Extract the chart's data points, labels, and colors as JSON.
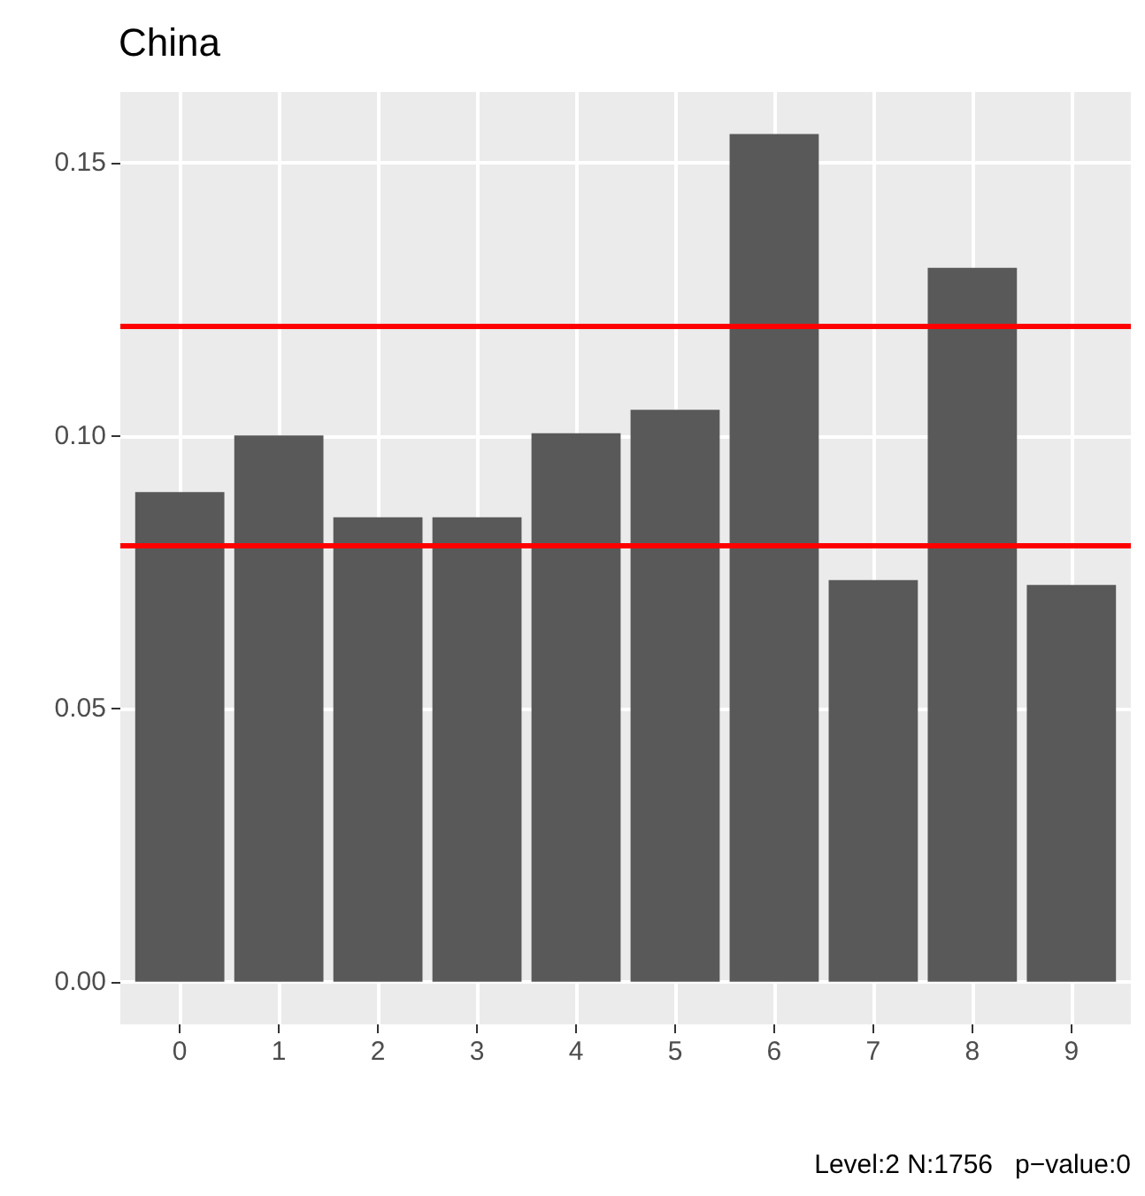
{
  "chart_data": {
    "type": "bar",
    "title": "China",
    "categories": [
      "0",
      "1",
      "2",
      "3",
      "4",
      "5",
      "6",
      "7",
      "8",
      "9"
    ],
    "values": [
      0.0897,
      0.1001,
      0.0851,
      0.0851,
      0.1005,
      0.1048,
      0.1553,
      0.0736,
      0.1308,
      0.0727
    ],
    "color": "#595959",
    "ylim": [
      -0.0078,
      0.163
    ],
    "yticks": [
      {
        "value": 0,
        "label": "0.00"
      },
      0.05,
      {
        "value": 0.1,
        "label": "0.10"
      },
      0.15
    ],
    "grid": true,
    "ref_lines": [
      {
        "axis": "y",
        "value": 0.1206,
        "color": "#ff0000"
      },
      {
        "axis": "y",
        "value": 0.0794,
        "color": "#ff0000"
      }
    ],
    "annotations": [
      "Level:2 N:1756   p−value:0"
    ]
  }
}
